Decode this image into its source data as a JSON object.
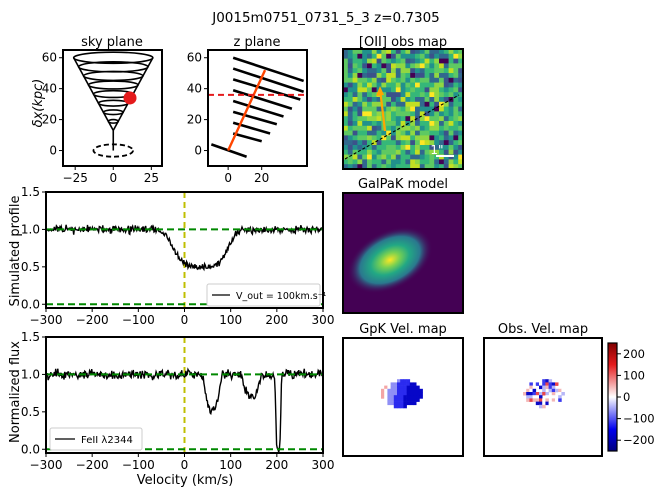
{
  "figure": {
    "suptitle": "J0015m0751_0731_5_3 z=0.7305"
  },
  "chart_data": [
    {
      "id": "sky-plane",
      "type": "diagram",
      "title": "sky plane",
      "ylabel": "δx(kpc)",
      "xticks": [
        -25,
        0,
        25
      ],
      "yticks": [
        0,
        20,
        40,
        60
      ],
      "xlim": [
        -33,
        32
      ],
      "ylim": [
        -10,
        65
      ],
      "cone_apex": [
        0,
        13
      ],
      "cone_top_center": [
        0,
        60
      ],
      "cone_top_halfwidth": 26,
      "spiral_turns": 8,
      "dashed_ellipse": {
        "cx": 0,
        "cy": 0,
        "rx": 13,
        "ry": 4
      },
      "marker": {
        "x": 11,
        "y": 34,
        "color": "#e41a1c"
      }
    },
    {
      "id": "z-plane",
      "type": "diagram",
      "title": "z plane",
      "xticks": [
        0,
        20
      ],
      "yticks": [
        0,
        20,
        40,
        60
      ],
      "xlim": [
        -12,
        47
      ],
      "ylim": [
        -10,
        65
      ],
      "sightline_y": 36,
      "axis_line": {
        "x1": 0,
        "y1": 0,
        "x2": 22,
        "y2": 52
      },
      "stripes": [
        {
          "x1": 3,
          "y1": 60,
          "x2": 45,
          "y2": 45
        },
        {
          "x1": 3,
          "y1": 53,
          "x2": 45,
          "y2": 38
        },
        {
          "x1": 3,
          "y1": 46,
          "x2": 43,
          "y2": 33
        },
        {
          "x1": 3,
          "y1": 39,
          "x2": 38,
          "y2": 27
        },
        {
          "x1": 3,
          "y1": 32,
          "x2": 33,
          "y2": 22
        },
        {
          "x1": 3,
          "y1": 25,
          "x2": 29,
          "y2": 17
        },
        {
          "x1": 3,
          "y1": 18,
          "x2": 25,
          "y2": 11
        },
        {
          "x1": 3,
          "y1": 11,
          "x2": 20,
          "y2": 6
        },
        {
          "x1": -10,
          "y1": 4,
          "x2": 11,
          "y2": -4
        }
      ]
    },
    {
      "id": "oii-obs-map",
      "type": "heatmap",
      "title": "[OII] obs map",
      "grid": [
        25,
        25
      ],
      "scale_label": "1\""
    },
    {
      "id": "galpak-model",
      "type": "heatmap",
      "title": "GalPaK model"
    },
    {
      "id": "simulated-profile",
      "type": "line",
      "ylabel": "Simulated profile",
      "xlim": [
        -300,
        300
      ],
      "ylim": [
        -0.05,
        1.5
      ],
      "xticks": [
        -300,
        -200,
        -100,
        0,
        100,
        200,
        300
      ],
      "yticks": [
        0.0,
        0.5,
        1.0,
        1.5
      ],
      "ytick_labels": [
        "0.0",
        "0.5",
        "1.0",
        "1.5"
      ],
      "continuum": 1.0,
      "zero_level": 0.0,
      "systemic_velocity": 0,
      "absorption": [
        {
          "center": 35,
          "width": 55,
          "depth": 0.5
        }
      ],
      "noise": 0.035,
      "legend": "V_out = 100km.s⁻¹",
      "legend_position": "lower-right"
    },
    {
      "id": "observed-spectrum",
      "type": "line",
      "ylabel": "Normalized flux",
      "xlabel": "Velocity (km/s)",
      "xlim": [
        -300,
        300
      ],
      "ylim": [
        -0.05,
        1.5
      ],
      "xticks": [
        -300,
        -200,
        -100,
        0,
        100,
        200,
        300
      ],
      "yticks": [
        0.0,
        0.5,
        1.0,
        1.5
      ],
      "ytick_labels": [
        "0.0",
        "0.5",
        "1.0",
        "1.5"
      ],
      "continuum": 1.0,
      "zero_level": 0.0,
      "systemic_velocity": 0,
      "absorption": [
        {
          "center": 60,
          "width": 14,
          "depth": 0.45
        },
        {
          "center": 145,
          "width": 14,
          "depth": 0.3
        },
        {
          "center": 203,
          "width": 5,
          "depth": 1.0
        }
      ],
      "noise": 0.045,
      "legend": "FeII λ2344",
      "legend_position": "lower-left"
    },
    {
      "id": "gpk-vel-map",
      "type": "heatmap",
      "title": "GpK Vel. map"
    },
    {
      "id": "obs-vel-map",
      "type": "heatmap",
      "title": "Obs. Vel. map",
      "colorbar": {
        "ticks": [
          200,
          100,
          0,
          -100,
          -200
        ],
        "range": [
          -250,
          250
        ]
      }
    }
  ]
}
